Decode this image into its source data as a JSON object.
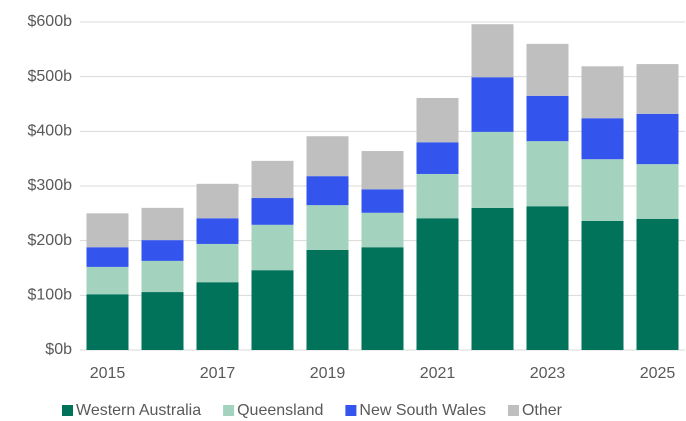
{
  "chart_data": {
    "type": "stacked_bar",
    "categories": [
      "2015",
      null,
      "2017",
      null,
      "2019",
      null,
      "2021",
      null,
      "2023",
      null,
      "2025"
    ],
    "series": [
      {
        "name": "Western Australia",
        "color": "#00735a",
        "values": [
          102,
          106,
          124,
          146,
          183,
          188,
          241,
          260,
          263,
          236,
          240
        ]
      },
      {
        "name": "Queensland",
        "color": "#a3d3bf",
        "values": [
          50,
          57,
          70,
          83,
          82,
          63,
          81,
          139,
          119,
          113,
          100
        ]
      },
      {
        "name": "New South Wales",
        "color": "#3355ee",
        "values": [
          36,
          38,
          47,
          49,
          53,
          43,
          58,
          100,
          83,
          75,
          92
        ]
      },
      {
        "name": "Other",
        "color": "#bfbfbf",
        "values": [
          62,
          59,
          63,
          68,
          73,
          70,
          81,
          97,
          95,
          95,
          91
        ]
      }
    ],
    "ylim": [
      0,
      600
    ],
    "yticks": [
      {
        "value": 0,
        "label": "$0b"
      },
      {
        "value": 100,
        "label": "$100b"
      },
      {
        "value": 200,
        "label": "$200b"
      },
      {
        "value": 300,
        "label": "$300b"
      },
      {
        "value": 400,
        "label": "$400b"
      },
      {
        "value": 500,
        "label": "$500b"
      },
      {
        "value": 600,
        "label": "$600b"
      }
    ],
    "grid": true,
    "legend": "bottom"
  }
}
